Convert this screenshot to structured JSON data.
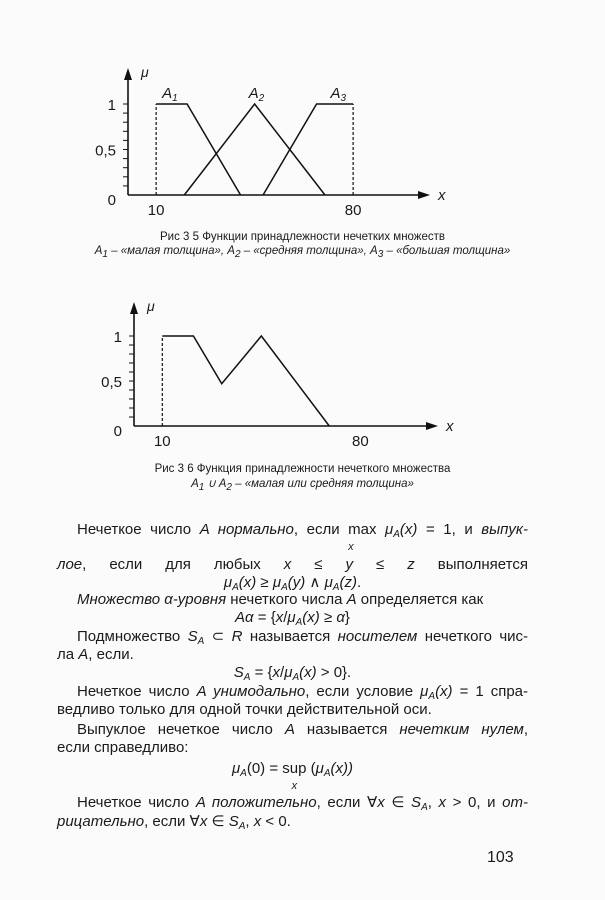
{
  "chart_data": [
    {
      "type": "line",
      "title": "",
      "xlabel": "x",
      "ylabel": "μ",
      "xlim": [
        0,
        106
      ],
      "ylim": [
        0,
        1.15
      ],
      "x_tick_labels": [
        "10",
        "80"
      ],
      "x_ticks": [
        10,
        80
      ],
      "y_tick_labels": [
        "0",
        "0,5",
        "1"
      ],
      "y_ticks": [
        0,
        0.5,
        1
      ],
      "y_minor_step": 0.1,
      "grid": false,
      "dashed_verticals": [
        10,
        80
      ],
      "series": [
        {
          "name": "A1",
          "label_main": "A",
          "label_sub": "1",
          "x": [
            10,
            21,
            40
          ],
          "y": [
            1,
            1,
            0
          ]
        },
        {
          "name": "A2",
          "label_main": "A",
          "label_sub": "2",
          "x": [
            20,
            45,
            70
          ],
          "y": [
            0,
            1,
            0
          ]
        },
        {
          "name": "A3",
          "label_main": "A",
          "label_sub": "3",
          "x": [
            48,
            67,
            80
          ],
          "y": [
            0,
            1,
            1
          ]
        }
      ],
      "caption_line1": "Рис  3 5  Функции принадлежности нечетких множеств",
      "caption_line2": [
        [
          "A",
          ""
        ],
        [
          "1",
          "sub"
        ],
        [
          " – «малая толщина», ",
          ""
        ],
        [
          "A",
          ""
        ],
        [
          "2",
          "sub"
        ],
        [
          " – «средняя толщина», ",
          ""
        ],
        [
          "A",
          ""
        ],
        [
          "3",
          "sub"
        ],
        [
          " – «большая толщина»",
          ""
        ]
      ]
    },
    {
      "type": "line",
      "title": "",
      "xlabel": "x",
      "ylabel": "μ",
      "xlim": [
        0,
        106
      ],
      "ylim": [
        0,
        1.15
      ],
      "x_tick_labels": [
        "10",
        "80"
      ],
      "x_ticks": [
        10,
        80
      ],
      "y_tick_labels": [
        "0",
        "0,5",
        "1"
      ],
      "y_ticks": [
        0,
        0.5,
        1
      ],
      "y_minor_step": 0.1,
      "grid": false,
      "dashed_verticals": [
        10
      ],
      "series": [
        {
          "x": [
            10,
            21,
            31,
            45,
            69
          ],
          "y": [
            1,
            1,
            0.47,
            1,
            0
          ]
        }
      ],
      "caption_line1": "Рис  3 6  Функция принадлежности нечеткого множества",
      "caption_line2": [
        [
          "A",
          ""
        ],
        [
          "1",
          "sub"
        ],
        [
          " ∪ ",
          ""
        ],
        [
          "A",
          ""
        ],
        [
          "2",
          "sub"
        ],
        [
          " – «малая или средняя толщина»",
          ""
        ]
      ]
    }
  ],
  "text": {
    "lines": [
      [
        [
          "Нечеткое число ",
          ""
        ],
        [
          "A нормально",
          "i"
        ],
        [
          ", если ",
          ""
        ],
        [
          "MAX",
          ""
        ],
        [
          " ",
          ""
        ],
        [
          "μ",
          "i"
        ],
        [
          "A",
          "isub"
        ],
        [
          "(x)",
          "i"
        ],
        [
          " = 1, и ",
          ""
        ],
        [
          "выпук-",
          "i"
        ]
      ],
      [
        [
          "лое",
          "i"
        ],
        [
          ", если для любых ",
          ""
        ],
        [
          "x",
          "i"
        ],
        [
          " ≤ ",
          ""
        ],
        [
          "y",
          "i"
        ],
        [
          " ≤ ",
          ""
        ],
        [
          "z",
          "i"
        ],
        [
          " выполняется",
          ""
        ]
      ],
      [
        [
          "μ",
          "i"
        ],
        [
          "A",
          "isub"
        ],
        [
          "(x)",
          "i"
        ],
        [
          " ≥ ",
          ""
        ],
        [
          "μ",
          "i"
        ],
        [
          "A",
          "isub"
        ],
        [
          "(y)",
          "i"
        ],
        [
          "  ∧  ",
          ""
        ],
        [
          "μ",
          "i"
        ],
        [
          "A",
          "isub"
        ],
        [
          "(z)",
          "i"
        ],
        [
          ".",
          ""
        ]
      ],
      [
        [
          "Множество α-уровня",
          "i"
        ],
        [
          " нечеткого числа ",
          ""
        ],
        [
          "A",
          "i"
        ],
        [
          " определяется как",
          ""
        ]
      ],
      [
        [
          "Aα",
          "i"
        ],
        [
          " = {",
          ""
        ],
        [
          "x",
          "i"
        ],
        [
          "/",
          ""
        ],
        [
          "μ",
          "i"
        ],
        [
          "A",
          "isub"
        ],
        [
          "(x)",
          "i"
        ],
        [
          " ≥ ",
          ""
        ],
        [
          "α",
          "i"
        ],
        [
          "}",
          ""
        ]
      ],
      [
        [
          "Подмножество ",
          ""
        ],
        [
          "S",
          "i"
        ],
        [
          "A",
          "isub"
        ],
        [
          " ⊂ ",
          ""
        ],
        [
          "R",
          "i"
        ],
        [
          " называется ",
          ""
        ],
        [
          "носителем",
          "i"
        ],
        [
          " нечеткого чис-",
          ""
        ]
      ],
      [
        [
          "ла ",
          ""
        ],
        [
          "A",
          "i"
        ],
        [
          ", если.",
          ""
        ]
      ],
      [
        [
          "S",
          "i"
        ],
        [
          "A",
          "isub"
        ],
        [
          " = {",
          ""
        ],
        [
          "x",
          "i"
        ],
        [
          "/",
          ""
        ],
        [
          "μ",
          "i"
        ],
        [
          "A",
          "isub"
        ],
        [
          "(x)",
          "i"
        ],
        [
          " > 0}.",
          ""
        ]
      ],
      [
        [
          "Нечеткое число ",
          ""
        ],
        [
          "A унимодально",
          "i"
        ],
        [
          ", если условие ",
          ""
        ],
        [
          "μ",
          "i"
        ],
        [
          "A",
          "isub"
        ],
        [
          "(x)",
          "i"
        ],
        [
          " = 1 спра-",
          ""
        ]
      ],
      [
        [
          "ведливо только для одной точки действительной оси.",
          ""
        ]
      ],
      [
        [
          "Выпуклое нечеткое число ",
          ""
        ],
        [
          "A",
          "i"
        ],
        [
          " называется ",
          ""
        ],
        [
          "нечетким нулем",
          "i"
        ],
        [
          ",",
          ""
        ]
      ],
      [
        [
          "если справедливо:",
          ""
        ]
      ],
      [
        [
          "μ",
          "i"
        ],
        [
          "A",
          "isub"
        ],
        [
          "(0) = ",
          ""
        ],
        [
          "SUP",
          ""
        ],
        [
          " (",
          ""
        ],
        [
          "μ",
          "i"
        ],
        [
          "A",
          "isub"
        ],
        [
          "(x))",
          "i"
        ]
      ],
      [
        [
          "Нечеткое число ",
          ""
        ],
        [
          "A положительно",
          "i"
        ],
        [
          ", если ∀",
          ""
        ],
        [
          "x",
          "i"
        ],
        [
          " ∈ ",
          ""
        ],
        [
          "S",
          "i"
        ],
        [
          "A",
          "isub"
        ],
        [
          ", ",
          ""
        ],
        [
          "x",
          "i"
        ],
        [
          " > 0, и ",
          ""
        ],
        [
          "от-",
          "i"
        ]
      ],
      [
        [
          "рицательно",
          "i"
        ],
        [
          ", если ∀",
          ""
        ],
        [
          "x",
          "i"
        ],
        [
          " ∈ ",
          ""
        ],
        [
          "S",
          "i"
        ],
        [
          "A",
          "isub"
        ],
        [
          ", ",
          ""
        ],
        [
          "x",
          "i"
        ],
        [
          " < 0.",
          ""
        ]
      ]
    ],
    "operators": {
      "max": "max",
      "sup": "sup",
      "under_x": "x"
    },
    "page_number": "103"
  }
}
